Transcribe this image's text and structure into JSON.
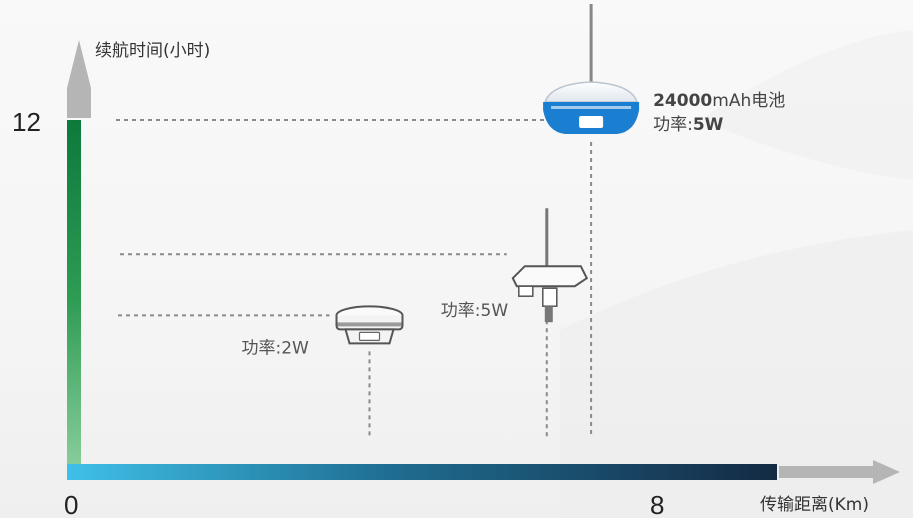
{
  "chart_data": {
    "type": "scatter",
    "title": "",
    "xlabel": "传输距离(Km)",
    "ylabel": "续航时间(小时)",
    "xlim": [
      0,
      12
    ],
    "ylim": [
      0,
      13.5
    ],
    "x_tick_labels": [
      "0",
      "8"
    ],
    "y_tick_labels": [
      "12"
    ],
    "points": [
      {
        "x": 4.0,
        "y": 5.3,
        "device": "small-receiver-icon",
        "label": "功率:2W"
      },
      {
        "x": 6.4,
        "y": 7.4,
        "device": "radio-station-icon",
        "label": "功率:5W"
      },
      {
        "x": 7.0,
        "y": 12.0,
        "device": "blue-receiver-icon",
        "label_num": "24000",
        "label_text": "mAh电池",
        "label2_prefix": "功率:",
        "label2_value": "5W"
      }
    ],
    "colors": {
      "y_axis_top": "#0b7a3b",
      "y_axis_bottom": "#8fd1a0",
      "x_axis_left": "#3fc0e8",
      "x_axis_right": "#142a44",
      "arrow": "#b5b5b5",
      "blue_device": "#1a7fd0",
      "guide": "#8a8a8a"
    }
  }
}
